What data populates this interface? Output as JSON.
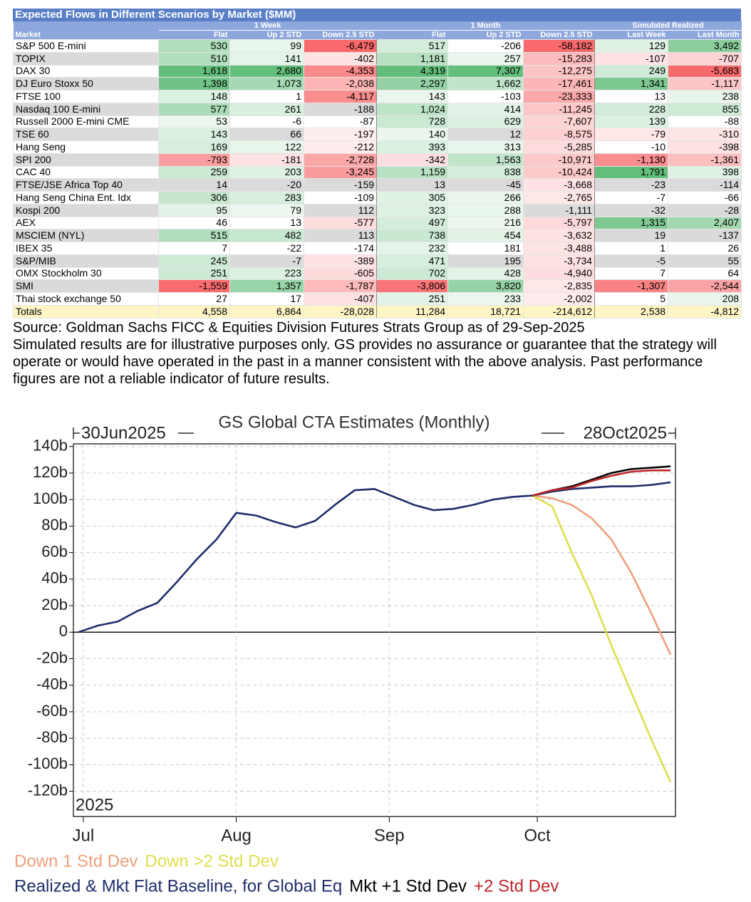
{
  "table": {
    "title": "Expected Flows in Different Scenarios by Market ($MM)",
    "groups": [
      "1 Week",
      "1 Month",
      "Simulated Realized"
    ],
    "columns": [
      "Market",
      "Flat",
      "Up 2 STD",
      "Down 2.5 STD",
      "Flat",
      "Up 2 STD",
      "Down 2.5 STD",
      "Last Week",
      "Last Month"
    ],
    "rows": [
      [
        "S&P 500 E-mini",
        "530",
        "99",
        "-6,479",
        "517",
        "-206",
        "-58,182",
        "129",
        "3,492"
      ],
      [
        "TOPIX",
        "510",
        "141",
        "-402",
        "1,181",
        "257",
        "-15,283",
        "-107",
        "-707"
      ],
      [
        "DAX 30",
        "1,618",
        "2,680",
        "-4,353",
        "4,319",
        "7,307",
        "-12,275",
        "249",
        "-5,683"
      ],
      [
        "DJ Euro Stoxx 50",
        "1,398",
        "1,073",
        "-2,038",
        "2,297",
        "1,662",
        "-17,461",
        "1,341",
        "-1,117"
      ],
      [
        "FTSE 100",
        "148",
        "1",
        "-4,117",
        "143",
        "-103",
        "-23,333",
        "13",
        "238"
      ],
      [
        "Nasdaq 100 E-mini",
        "577",
        "261",
        "-188",
        "1,024",
        "414",
        "-11,245",
        "228",
        "855"
      ],
      [
        "Russell 2000 E-mini CME",
        "53",
        "-6",
        "-87",
        "728",
        "629",
        "-7,607",
        "139",
        "-88"
      ],
      [
        "TSE 60",
        "143",
        "66",
        "-197",
        "140",
        "12",
        "-8,575",
        "-79",
        "-310"
      ],
      [
        "Hang Seng",
        "169",
        "122",
        "-212",
        "393",
        "313",
        "-5,285",
        "-10",
        "-398"
      ],
      [
        "SPI 200",
        "-793",
        "-181",
        "-2,728",
        "-342",
        "1,563",
        "-10,971",
        "-1,130",
        "-1,361"
      ],
      [
        "CAC 40",
        "259",
        "203",
        "-3,245",
        "1,159",
        "838",
        "-10,424",
        "1,791",
        "398"
      ],
      [
        "FTSE/JSE Africa Top 40",
        "14",
        "-20",
        "-159",
        "13",
        "-45",
        "-3,668",
        "-23",
        "-114"
      ],
      [
        "Hang Seng China Ent. Idx",
        "306",
        "283",
        "-109",
        "305",
        "266",
        "-2,765",
        "-7",
        "-66"
      ],
      [
        "Kospi 200",
        "95",
        "79",
        "112",
        "323",
        "288",
        "-1,111",
        "-32",
        "-28"
      ],
      [
        "AEX",
        "46",
        "13",
        "-577",
        "497",
        "216",
        "-5,797",
        "1,315",
        "2,407"
      ],
      [
        "MSCIEM (NYL)",
        "515",
        "482",
        "113",
        "738",
        "454",
        "-3,632",
        "19",
        "-137"
      ],
      [
        "IBEX 35",
        "7",
        "-22",
        "-174",
        "232",
        "181",
        "-3,488",
        "1",
        "26"
      ],
      [
        "S&P/MIB",
        "245",
        "-7",
        "-389",
        "471",
        "195",
        "-3,734",
        "-5",
        "55"
      ],
      [
        "OMX Stockholm 30",
        "251",
        "223",
        "-605",
        "702",
        "428",
        "-4,940",
        "7",
        "64"
      ],
      [
        "SMI",
        "-1,559",
        "1,357",
        "-1,787",
        "-3,806",
        "3,820",
        "-2,835",
        "-1,307",
        "-2,544"
      ],
      [
        "Thai stock exchange 50",
        "27",
        "17",
        "-407",
        "251",
        "233",
        "-2,002",
        "5",
        "208"
      ]
    ],
    "totals": [
      "Totals",
      "4,558",
      "6,864",
      "-28,028",
      "11,284",
      "18,721",
      "-214,612",
      "2,538",
      "-4,812"
    ]
  },
  "source": "Source: Goldman Sachs FICC & Equities Division Futures Strats Group as of 29-Sep-2025",
  "disclaimer": "Simulated results are for illustrative purposes only. GS provides no assurance or guarantee that the strategy will operate or would have operated in the past in a manner consistent with the above analysis. Past performance figures are not a reliable indicator of future results.",
  "chart_data": {
    "type": "line",
    "title": "GS Global CTA Estimates (Monthly)",
    "annotations": [
      "30Jun2025",
      "28Oct2025",
      "2025"
    ],
    "x": [
      "2025-06-30",
      "2025-07-04",
      "2025-07-08",
      "2025-07-12",
      "2025-07-16",
      "2025-07-20",
      "2025-07-24",
      "2025-07-28",
      "2025-08-01",
      "2025-08-05",
      "2025-08-09",
      "2025-08-13",
      "2025-08-17",
      "2025-08-21",
      "2025-08-25",
      "2025-08-29",
      "2025-09-02",
      "2025-09-06",
      "2025-09-10",
      "2025-09-14",
      "2025-09-18",
      "2025-09-22",
      "2025-09-26",
      "2025-09-30",
      "2025-10-04",
      "2025-10-08",
      "2025-10-12",
      "2025-10-16",
      "2025-10-20",
      "2025-10-24",
      "2025-10-28"
    ],
    "xlim": [
      "2025-06-29",
      "2025-10-29"
    ],
    "xticks": [
      {
        "value": "2025-07-01",
        "label": "Jul"
      },
      {
        "value": "2025-08-01",
        "label": "Aug"
      },
      {
        "value": "2025-09-01",
        "label": "Sep"
      },
      {
        "value": "2025-10-01",
        "label": "Oct"
      }
    ],
    "ylim": [
      -139,
      142
    ],
    "yticks": [
      {
        "value": 140,
        "label": "140b"
      },
      {
        "value": 120,
        "label": "120b"
      },
      {
        "value": 100,
        "label": "100b"
      },
      {
        "value": 80,
        "label": "80b"
      },
      {
        "value": 60,
        "label": "60b"
      },
      {
        "value": 40,
        "label": "40b"
      },
      {
        "value": 20,
        "label": "20b"
      },
      0,
      {
        "value": -20,
        "label": "-20b"
      },
      {
        "value": -40,
        "label": "-40b"
      },
      {
        "value": -60,
        "label": "-60b"
      },
      {
        "value": -80,
        "label": "-80b"
      },
      {
        "value": -100,
        "label": "-100b"
      },
      {
        "value": -120,
        "label": "-120b"
      }
    ],
    "grid": true,
    "series": [
      {
        "name": "Down 1 Std Dev",
        "color": "#eea07c",
        "values": [
          null,
          null,
          null,
          null,
          null,
          null,
          null,
          null,
          null,
          null,
          null,
          null,
          null,
          null,
          null,
          null,
          null,
          null,
          null,
          null,
          null,
          null,
          null,
          103,
          101,
          96,
          86,
          70,
          45,
          15,
          -17
        ]
      },
      {
        "name": "Down >2 Std Dev",
        "color": "#dede4e",
        "values": [
          null,
          null,
          null,
          null,
          null,
          null,
          null,
          null,
          null,
          null,
          null,
          null,
          null,
          null,
          null,
          null,
          null,
          null,
          null,
          null,
          null,
          null,
          null,
          103,
          95,
          60,
          28,
          -10,
          -45,
          -80,
          -113
        ]
      },
      {
        "name": "Realized & Mkt Flat Baseline, for Global Eq",
        "color": "#1f2d6b",
        "values": [
          0,
          5,
          8,
          16,
          22,
          38,
          55,
          70,
          90,
          88,
          83,
          79,
          84,
          96,
          107,
          108,
          102,
          96,
          92,
          93,
          96,
          100,
          102,
          103,
          106,
          108,
          109,
          110,
          110,
          111,
          113
        ]
      },
      {
        "name": "Mkt +1 Std Dev",
        "color": "#000000",
        "values": [
          null,
          null,
          null,
          null,
          null,
          null,
          null,
          null,
          null,
          null,
          null,
          null,
          null,
          null,
          null,
          null,
          null,
          null,
          null,
          null,
          null,
          null,
          null,
          103,
          107,
          110,
          115,
          120,
          123,
          124,
          125
        ]
      },
      {
        "name": "+2 Std Dev",
        "color": "#c0262a",
        "values": [
          null,
          null,
          null,
          null,
          null,
          null,
          null,
          null,
          null,
          null,
          null,
          null,
          null,
          null,
          null,
          null,
          null,
          null,
          null,
          null,
          null,
          null,
          null,
          103,
          107,
          109,
          114,
          118,
          121,
          122,
          122
        ]
      }
    ]
  }
}
